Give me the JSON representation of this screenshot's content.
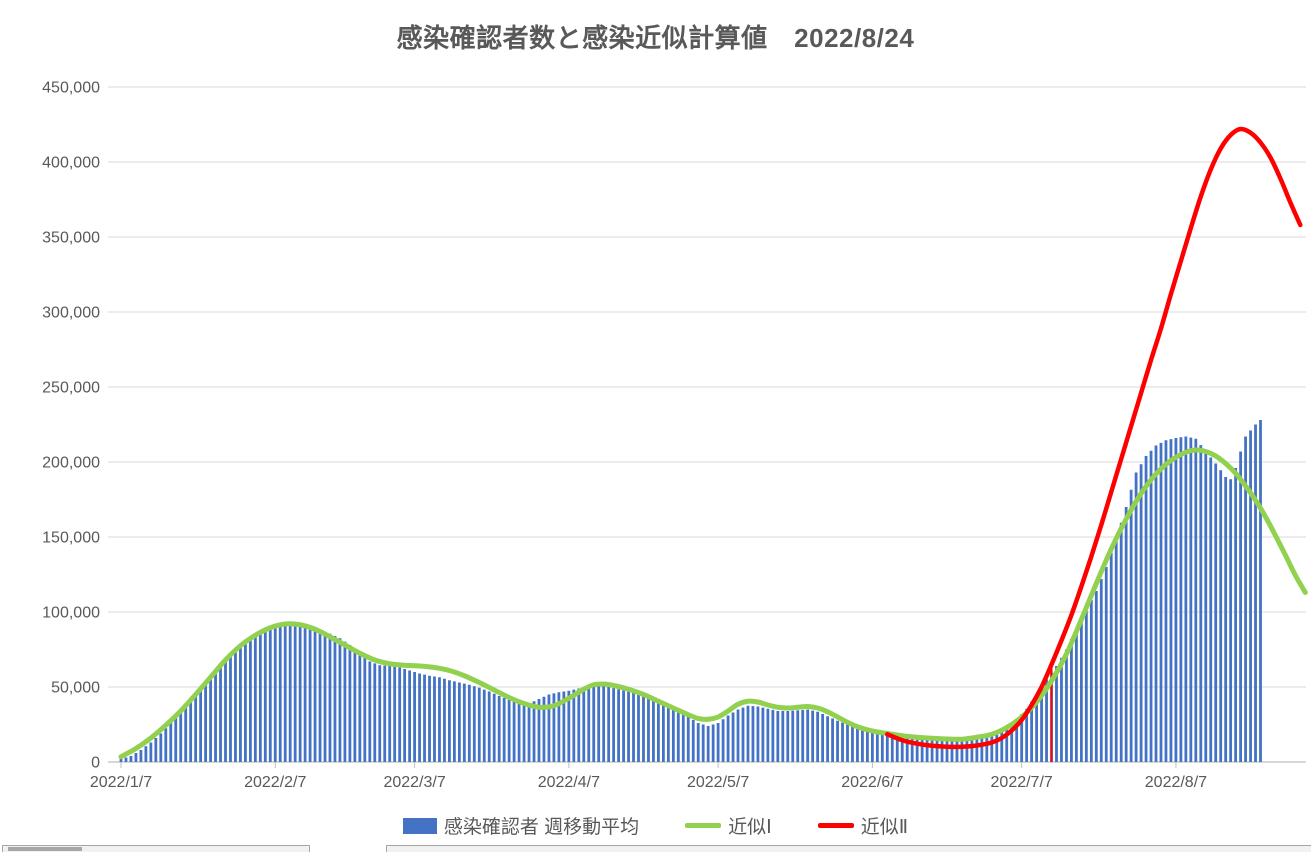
{
  "title": "感染確認者数と感染近似計算値　2022/8/24",
  "legend": {
    "items": [
      {
        "label": "感染確認者 週移動平均",
        "swatch": "bar",
        "color": "#4472C4"
      },
      {
        "label": "近似Ⅰ",
        "swatch": "line",
        "color": "#92D050"
      },
      {
        "label": "近似Ⅱ",
        "swatch": "line",
        "color": "#FF0000"
      }
    ],
    "position": "bottom"
  },
  "chart_data": {
    "type": "combo-bar-line",
    "title": "感染確認者数と感染近似計算値　2022/8/24",
    "ylim": [
      0,
      450000
    ],
    "y_tick_step": 50000,
    "y_tick_labels": [
      "0",
      "50,000",
      "100,000",
      "150,000",
      "200,000",
      "250,000",
      "300,000",
      "350,000",
      "400,000",
      "450,000"
    ],
    "x_tick_dates": [
      "1/7",
      "2/7",
      "3/7",
      "4/7",
      "5/7",
      "6/7",
      "7/7",
      "8/7"
    ],
    "x_tick_labels": [
      "2022/1/7",
      "2022/2/7",
      "2022/3/7",
      "2022/4/7",
      "2022/5/7",
      "2022/6/7",
      "2022/7/7",
      "2022/8/7"
    ],
    "x_domain": [
      "1/7",
      "9/2"
    ],
    "grid": "horizontal",
    "gridline_color": "#D9D9D9",
    "axis_color": "#BFBFBF",
    "label_color": "#595959",
    "legend_position": "bottom",
    "series": [
      {
        "name": "感染確認者 週移動平均",
        "type": "bar",
        "color": "#4472C4",
        "daily_bars": true,
        "points": [
          [
            "1/7",
            2000
          ],
          [
            "1/9",
            4000
          ],
          [
            "1/11",
            8000
          ],
          [
            "1/13",
            13000
          ],
          [
            "1/15",
            19000
          ],
          [
            "1/17",
            26000
          ],
          [
            "1/19",
            33500
          ],
          [
            "1/21",
            41000
          ],
          [
            "1/23",
            48000
          ],
          [
            "1/25",
            55000
          ],
          [
            "1/27",
            63000
          ],
          [
            "1/29",
            71000
          ],
          [
            "1/31",
            78000
          ],
          [
            "2/2",
            83000
          ],
          [
            "2/4",
            86500
          ],
          [
            "2/6",
            89000
          ],
          [
            "2/8",
            90500
          ],
          [
            "2/10",
            92000
          ],
          [
            "2/12",
            91500
          ],
          [
            "2/14",
            89500
          ],
          [
            "2/16",
            87000
          ],
          [
            "2/18",
            85500
          ],
          [
            "2/20",
            82500
          ],
          [
            "2/22",
            78000
          ],
          [
            "2/24",
            72000
          ],
          [
            "2/26",
            67000
          ],
          [
            "2/28",
            64500
          ],
          [
            "3/2",
            64000
          ],
          [
            "3/4",
            63000
          ],
          [
            "3/6",
            61000
          ],
          [
            "3/8",
            59000
          ],
          [
            "3/10",
            57500
          ],
          [
            "3/12",
            56500
          ],
          [
            "3/14",
            54500
          ],
          [
            "3/16",
            53000
          ],
          [
            "3/18",
            51500
          ],
          [
            "3/20",
            49500
          ],
          [
            "3/22",
            47000
          ],
          [
            "3/24",
            44000
          ],
          [
            "3/26",
            41500
          ],
          [
            "3/28",
            39500
          ],
          [
            "3/30",
            39000
          ],
          [
            "4/1",
            42000
          ],
          [
            "4/3",
            45000
          ],
          [
            "4/5",
            46500
          ],
          [
            "4/7",
            47500
          ],
          [
            "4/9",
            49000
          ],
          [
            "4/11",
            50500
          ],
          [
            "4/13",
            51000
          ],
          [
            "4/15",
            50000
          ],
          [
            "4/17",
            48500
          ],
          [
            "4/19",
            47000
          ],
          [
            "4/21",
            45500
          ],
          [
            "4/23",
            43000
          ],
          [
            "4/25",
            40000
          ],
          [
            "4/27",
            37500
          ],
          [
            "4/29",
            34500
          ],
          [
            "5/1",
            30000
          ],
          [
            "5/3",
            26000
          ],
          [
            "5/5",
            24000
          ],
          [
            "5/7",
            26000
          ],
          [
            "5/9",
            31000
          ],
          [
            "5/11",
            35000
          ],
          [
            "5/13",
            37500
          ],
          [
            "5/15",
            37000
          ],
          [
            "5/17",
            35500
          ],
          [
            "5/19",
            34000
          ],
          [
            "5/21",
            34000
          ],
          [
            "5/23",
            34500
          ],
          [
            "5/25",
            35000
          ],
          [
            "5/27",
            33500
          ],
          [
            "5/29",
            30500
          ],
          [
            "5/31",
            27500
          ],
          [
            "6/2",
            25000
          ],
          [
            "6/4",
            22500
          ],
          [
            "6/6",
            20500
          ],
          [
            "6/8",
            18500
          ],
          [
            "6/10",
            17500
          ],
          [
            "6/12",
            16500
          ],
          [
            "6/14",
            16000
          ],
          [
            "6/16",
            15500
          ],
          [
            "6/18",
            15500
          ],
          [
            "6/20",
            15500
          ],
          [
            "6/22",
            15500
          ],
          [
            "6/24",
            15500
          ],
          [
            "6/26",
            16000
          ],
          [
            "6/28",
            17000
          ],
          [
            "6/30",
            18500
          ],
          [
            "7/2",
            20500
          ],
          [
            "7/4",
            24000
          ],
          [
            "7/6",
            28500
          ],
          [
            "7/8",
            35500
          ],
          [
            "7/10",
            45000
          ],
          [
            "7/12",
            55000
          ],
          [
            "7/14",
            64000
          ],
          [
            "7/16",
            75000
          ],
          [
            "7/18",
            89000
          ],
          [
            "7/20",
            102000
          ],
          [
            "7/22",
            114000
          ],
          [
            "7/24",
            130000
          ],
          [
            "7/26",
            149000
          ],
          [
            "7/28",
            170000
          ],
          [
            "7/30",
            193000
          ],
          [
            "8/1",
            204000
          ],
          [
            "8/3",
            211000
          ],
          [
            "8/5",
            214500
          ],
          [
            "8/7",
            216000
          ],
          [
            "8/9",
            217000
          ],
          [
            "8/11",
            215500
          ],
          [
            "8/13",
            207000
          ],
          [
            "8/15",
            199000
          ],
          [
            "8/17",
            190000
          ],
          [
            "8/18",
            188500
          ],
          [
            "8/19",
            196000
          ],
          [
            "8/20",
            207000
          ],
          [
            "8/21",
            217000
          ],
          [
            "8/22",
            221000
          ],
          [
            "8/23",
            225000
          ],
          [
            "8/24",
            228000
          ]
        ]
      },
      {
        "name": "近似Ⅰ",
        "type": "line",
        "color": "#92D050",
        "stroke_width": 5,
        "points": [
          [
            "1/7",
            3500
          ],
          [
            "1/10",
            9000
          ],
          [
            "1/13",
            16000
          ],
          [
            "1/16",
            24500
          ],
          [
            "1/19",
            34000
          ],
          [
            "1/22",
            45000
          ],
          [
            "1/25",
            56500
          ],
          [
            "1/28",
            68000
          ],
          [
            "1/31",
            77500
          ],
          [
            "2/3",
            84500
          ],
          [
            "2/6",
            89500
          ],
          [
            "2/9",
            92000
          ],
          [
            "2/12",
            91500
          ],
          [
            "2/15",
            88500
          ],
          [
            "2/18",
            83500
          ],
          [
            "2/21",
            78000
          ],
          [
            "2/24",
            72500
          ],
          [
            "2/27",
            68000
          ],
          [
            "3/2",
            65500
          ],
          [
            "3/5",
            64500
          ],
          [
            "3/8",
            64000
          ],
          [
            "3/11",
            63000
          ],
          [
            "3/14",
            61000
          ],
          [
            "3/17",
            57500
          ],
          [
            "3/20",
            53000
          ],
          [
            "3/23",
            48000
          ],
          [
            "3/26",
            43000
          ],
          [
            "3/29",
            39000
          ],
          [
            "4/1",
            36500
          ],
          [
            "4/4",
            37500
          ],
          [
            "4/7",
            42500
          ],
          [
            "4/10",
            48500
          ],
          [
            "4/12",
            51500
          ],
          [
            "4/14",
            52000
          ],
          [
            "4/16",
            51000
          ],
          [
            "4/19",
            48500
          ],
          [
            "4/22",
            45000
          ],
          [
            "4/25",
            40500
          ],
          [
            "4/28",
            36000
          ],
          [
            "5/1",
            31500
          ],
          [
            "5/3",
            29000
          ],
          [
            "5/5",
            28500
          ],
          [
            "5/7",
            30000
          ],
          [
            "5/9",
            34000
          ],
          [
            "5/11",
            38500
          ],
          [
            "5/13",
            40500
          ],
          [
            "5/15",
            40000
          ],
          [
            "5/17",
            38000
          ],
          [
            "5/19",
            36500
          ],
          [
            "5/21",
            36000
          ],
          [
            "5/23",
            36500
          ],
          [
            "5/25",
            37000
          ],
          [
            "5/27",
            36000
          ],
          [
            "5/29",
            33500
          ],
          [
            "5/31",
            30000
          ],
          [
            "6/2",
            26500
          ],
          [
            "6/4",
            23500
          ],
          [
            "6/6",
            21500
          ],
          [
            "6/8",
            20000
          ],
          [
            "6/10",
            19000
          ],
          [
            "6/13",
            17500
          ],
          [
            "6/16",
            16500
          ],
          [
            "6/19",
            15800
          ],
          [
            "6/22",
            15300
          ],
          [
            "6/25",
            15200
          ],
          [
            "6/28",
            16500
          ],
          [
            "7/1",
            18500
          ],
          [
            "7/4",
            23000
          ],
          [
            "7/7",
            30000
          ],
          [
            "7/10",
            40000
          ],
          [
            "7/13",
            54000
          ],
          [
            "7/16",
            72000
          ],
          [
            "7/19",
            95000
          ],
          [
            "7/22",
            119000
          ],
          [
            "7/25",
            142000
          ],
          [
            "7/28",
            162000
          ],
          [
            "7/31",
            179000
          ],
          [
            "8/3",
            192000
          ],
          [
            "8/6",
            201000
          ],
          [
            "8/9",
            206500
          ],
          [
            "8/11",
            208000
          ],
          [
            "8/13",
            207000
          ],
          [
            "8/15",
            204000
          ],
          [
            "8/17",
            199000
          ],
          [
            "8/19",
            192500
          ],
          [
            "8/21",
            184000
          ],
          [
            "8/23",
            174500
          ],
          [
            "8/25",
            163500
          ],
          [
            "8/27",
            151000
          ],
          [
            "8/29",
            138000
          ],
          [
            "8/31",
            124500
          ],
          [
            "9/2",
            113000
          ]
        ]
      },
      {
        "name": "近似Ⅱ",
        "type": "line",
        "color": "#FF0000",
        "stroke_width": 4.5,
        "points": [
          [
            "6/10",
            18500
          ],
          [
            "6/13",
            14500
          ],
          [
            "6/16",
            12200
          ],
          [
            "6/19",
            10800
          ],
          [
            "6/22",
            10200
          ],
          [
            "6/25",
            10200
          ],
          [
            "6/28",
            11000
          ],
          [
            "7/1",
            13000
          ],
          [
            "7/3",
            16000
          ],
          [
            "7/5",
            21000
          ],
          [
            "7/7",
            28000
          ],
          [
            "7/9",
            38000
          ],
          [
            "7/11",
            50000
          ],
          [
            "7/13",
            65000
          ],
          [
            "7/15",
            81000
          ],
          [
            "7/17",
            98000
          ],
          [
            "7/19",
            117000
          ],
          [
            "7/21",
            137000
          ],
          [
            "7/23",
            158000
          ],
          [
            "7/25",
            180000
          ],
          [
            "7/27",
            202000
          ],
          [
            "7/29",
            224000
          ],
          [
            "7/31",
            246000
          ],
          [
            "8/2",
            268000
          ],
          [
            "8/4",
            289000
          ],
          [
            "8/6",
            312000
          ],
          [
            "8/8",
            334000
          ],
          [
            "8/10",
            356000
          ],
          [
            "8/12",
            377000
          ],
          [
            "8/14",
            395000
          ],
          [
            "8/16",
            409000
          ],
          [
            "8/18",
            418000
          ],
          [
            "8/20",
            422000
          ],
          [
            "8/22",
            419500
          ],
          [
            "8/24",
            413000
          ],
          [
            "8/26",
            403000
          ],
          [
            "8/28",
            389000
          ],
          [
            "8/30",
            373000
          ],
          [
            "9/1",
            358000
          ]
        ]
      }
    ],
    "annotations": [
      {
        "type": "vline",
        "x": "7/13",
        "y_top": 65000,
        "color": "#FF0000",
        "width": 2
      }
    ]
  }
}
